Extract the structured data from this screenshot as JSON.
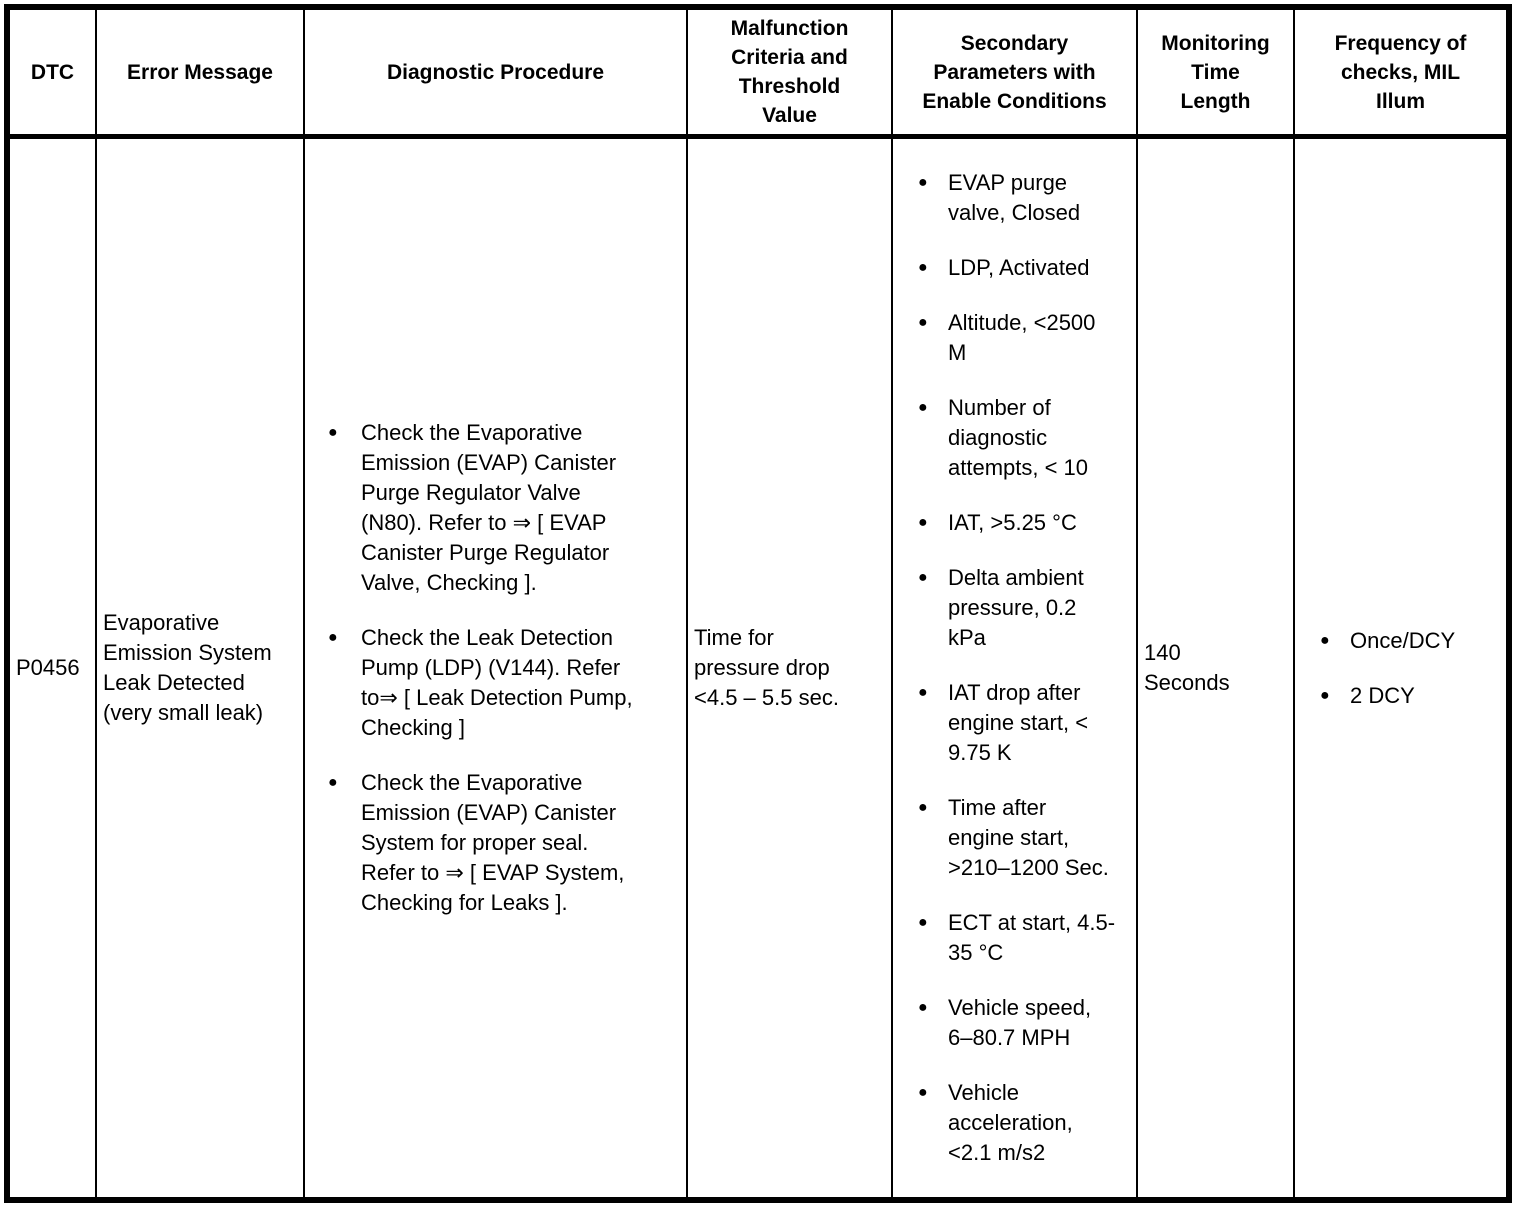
{
  "glyphs": {
    "bullet": "●"
  },
  "table": {
    "headers": [
      "DTC",
      "Error Message",
      "Diagnostic Procedure",
      "Malfunction Criteria and Threshold Value",
      "Secondary Parameters with Enable Conditions",
      "Monitoring Time Length",
      "Frequency of checks, MIL Illum"
    ],
    "row": {
      "dtc": "P0456",
      "error_message": "Evaporative Emission System Leak Detected (very small leak)",
      "diagnostic_procedure": [
        "Check the Evaporative Emission (EVAP) Canister Purge Regulator Valve (N80). Refer to ⇒ [ EVAP Canister Purge Regulator Valve, Checking ].",
        "Check the Leak Detection Pump (LDP) (V144). Refer to⇒ [ Leak Detection Pump, Checking ]",
        "Check the Evaporative Emission (EVAP) Canister System for proper seal. Refer to ⇒ [ EVAP System, Checking for Leaks ]."
      ],
      "malfunction_criteria": "Time for pressure drop <4.5 – 5.5 sec.",
      "secondary_parameters": [
        "EVAP purge valve, Closed",
        "LDP, Activated",
        "Altitude, <2500 M",
        "Number of diagnostic attempts, < 10",
        "IAT, >5.25 °C",
        "Delta ambient pressure, 0.2 kPa",
        "IAT drop after engine start, < 9.75 K",
        "Time after engine start, >210–1200 Sec.",
        "ECT at start, 4.5-35 °C",
        "Vehicle speed, 6–80.7 MPH",
        "Vehicle acceleration, <2.1 m/s2"
      ],
      "monitoring_time_length": "140 Seconds",
      "frequency_of_checks": [
        "Once/DCY",
        "2 DCY"
      ]
    }
  }
}
